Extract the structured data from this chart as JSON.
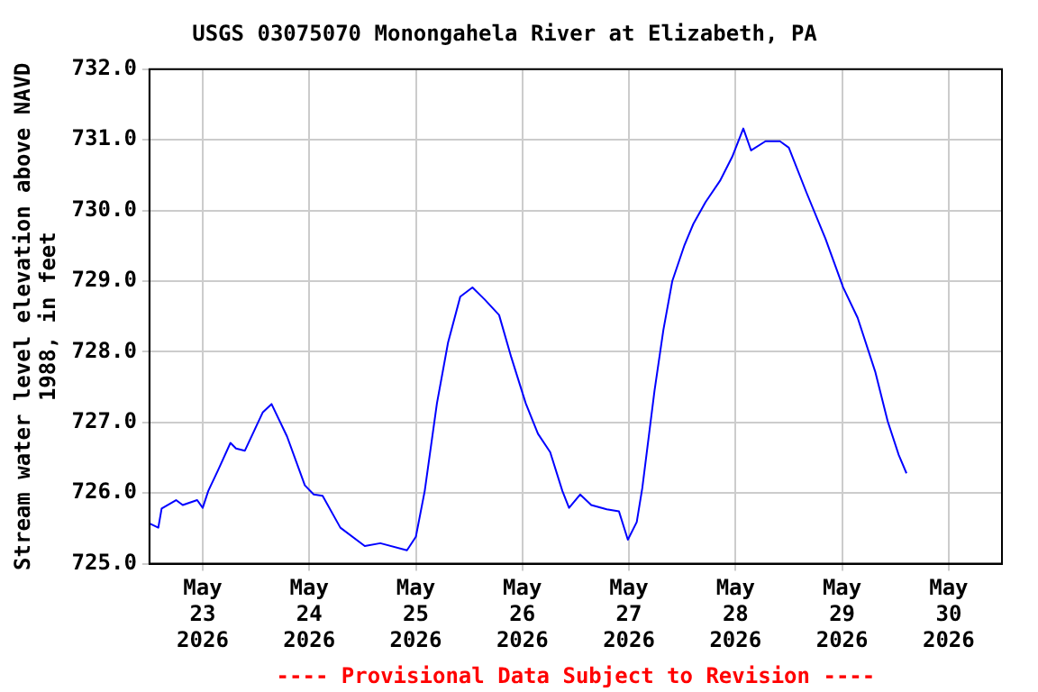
{
  "chart_data": {
    "type": "line",
    "title": "USGS 03075070 Monongahela River at Elizabeth, PA",
    "ylabel": "Stream water level elevation above NAVD 1988, in feet",
    "annotations": [
      "---- Provisional Data Subject to Revision ----"
    ],
    "x": [
      "2026-05-22T12:00",
      "2026-05-22T14:00",
      "2026-05-22T14:45",
      "2026-05-22T18:00",
      "2026-05-22T19:30",
      "2026-05-22T22:45",
      "2026-05-23T00:00",
      "2026-05-23T01:15",
      "2026-05-23T03:30",
      "2026-05-23T06:15",
      "2026-05-23T07:30",
      "2026-05-23T09:30",
      "2026-05-23T13:30",
      "2026-05-23T15:30",
      "2026-05-23T19:00",
      "2026-05-23T23:00",
      "2026-05-24T01:00",
      "2026-05-24T03:00",
      "2026-05-24T07:00",
      "2026-05-24T12:30",
      "2026-05-24T16:00",
      "2026-05-24T22:00",
      "2026-05-25T00:00",
      "2026-05-25T02:00",
      "2026-05-25T04:45",
      "2026-05-25T07:15",
      "2026-05-25T10:00",
      "2026-05-25T12:45",
      "2026-05-25T15:30",
      "2026-05-25T18:45",
      "2026-05-25T21:30",
      "2026-05-26T00:45",
      "2026-05-26T03:30",
      "2026-05-26T06:15",
      "2026-05-26T09:00",
      "2026-05-26T10:30",
      "2026-05-26T13:00",
      "2026-05-26T15:30",
      "2026-05-26T19:00",
      "2026-05-26T21:45",
      "2026-05-26T23:45",
      "2026-05-27T01:45",
      "2026-05-27T03:00",
      "2026-05-27T05:45",
      "2026-05-27T07:45",
      "2026-05-27T09:45",
      "2026-05-27T12:30",
      "2026-05-27T14:30",
      "2026-05-27T17:15",
      "2026-05-27T20:30",
      "2026-05-27T23:15",
      "2026-05-28T01:45",
      "2026-05-28T03:30",
      "2026-05-28T06:45",
      "2026-05-28T10:00",
      "2026-05-28T12:00",
      "2026-05-28T16:00",
      "2026-05-28T20:15",
      "2026-05-29T00:15",
      "2026-05-29T03:30",
      "2026-05-29T07:30",
      "2026-05-29T10:15",
      "2026-05-29T12:45",
      "2026-05-29T14:30"
    ],
    "series": [
      {
        "color": "#0000ff",
        "values": [
          725.57,
          725.51,
          725.78,
          725.9,
          725.83,
          725.9,
          725.79,
          726.03,
          726.33,
          726.71,
          726.63,
          726.6,
          727.14,
          727.26,
          726.8,
          726.11,
          725.98,
          725.96,
          725.51,
          725.25,
          725.29,
          725.19,
          725.38,
          726.03,
          727.27,
          728.13,
          728.78,
          728.91,
          728.74,
          728.52,
          727.92,
          727.27,
          726.84,
          726.58,
          726.03,
          725.79,
          725.98,
          725.83,
          725.77,
          725.74,
          725.34,
          725.59,
          726.07,
          727.45,
          728.31,
          729.0,
          729.51,
          729.81,
          730.12,
          730.42,
          730.76,
          731.16,
          730.85,
          730.98,
          730.98,
          730.89,
          730.25,
          729.6,
          728.91,
          728.48,
          727.71,
          727.02,
          726.54,
          726.28
        ]
      }
    ],
    "xlim": [
      "2026-05-22T12:00",
      "2026-05-30T12:00"
    ],
    "xticks": [
      {
        "value": "2026-05-23",
        "label": "May 23 2026"
      },
      {
        "value": "2026-05-24",
        "label": "May 24 2026"
      },
      {
        "value": "2026-05-25",
        "label": "May 25 2026"
      },
      {
        "value": "2026-05-26",
        "label": "May 26 2026"
      },
      {
        "value": "2026-05-27",
        "label": "May 27 2026"
      },
      {
        "value": "2026-05-28",
        "label": "May 28 2026"
      },
      {
        "value": "2026-05-29",
        "label": "May 29 2026"
      },
      {
        "value": "2026-05-30",
        "label": "May 30 2026"
      }
    ],
    "ylim": [
      725,
      732
    ],
    "yticks": [
      {
        "value": 725,
        "label": "725.0"
      },
      {
        "value": 726,
        "label": "726.0"
      },
      {
        "value": 727,
        "label": "727.0"
      },
      {
        "value": 728,
        "label": "728.0"
      },
      {
        "value": 729,
        "label": "729.0"
      },
      {
        "value": 730,
        "label": "730.0"
      },
      {
        "value": 731,
        "label": "731.0"
      },
      {
        "value": 732,
        "label": "732.0"
      }
    ],
    "grid": true,
    "legend": false,
    "marker": "none",
    "line_style": "solid"
  }
}
